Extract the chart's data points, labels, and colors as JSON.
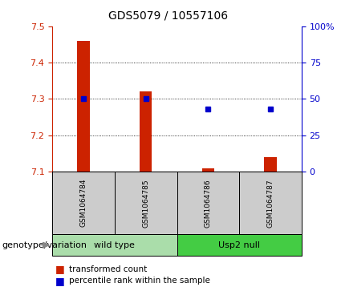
{
  "title": "GDS5079 / 10557106",
  "samples": [
    "GSM1064784",
    "GSM1064785",
    "GSM1064786",
    "GSM1064787"
  ],
  "bar_values": [
    7.46,
    7.32,
    7.11,
    7.14
  ],
  "bar_baseline": 7.1,
  "percentile_values": [
    50,
    50,
    43,
    43
  ],
  "ylim_left": [
    7.1,
    7.5
  ],
  "ylim_right": [
    0,
    100
  ],
  "yticks_left": [
    7.1,
    7.2,
    7.3,
    7.4,
    7.5
  ],
  "yticks_right": [
    0,
    25,
    50,
    75,
    100
  ],
  "bar_color": "#cc2200",
  "dot_color": "#0000cc",
  "group_labels": [
    "wild type",
    "Usp2 null"
  ],
  "group_color_wt": "#aaddaa",
  "group_color_usp2": "#44cc44",
  "group_bg_color": "#cccccc",
  "legend_bar_label": "transformed count",
  "legend_dot_label": "percentile rank within the sample",
  "genotype_label": "genotype/variation",
  "title_fontsize": 10,
  "tick_fontsize": 8,
  "sample_fontsize": 6.5,
  "group_fontsize": 8,
  "legend_fontsize": 7.5,
  "genotype_fontsize": 8
}
